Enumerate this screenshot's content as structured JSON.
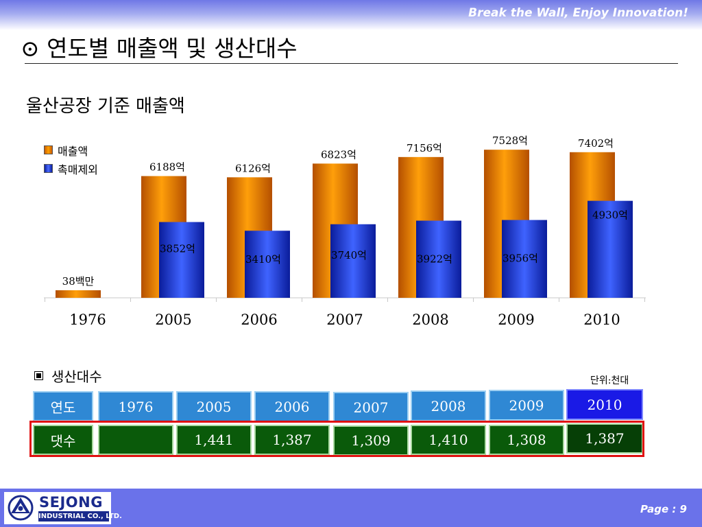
{
  "header": {
    "slogan": "Break the Wall, Enjoy Innovation!",
    "title": "⊙ 연도별 매출액 및 생산대수"
  },
  "section_title": "울산공장 기준 매출액",
  "colors": {
    "revenue_bar": "#f08a00",
    "excluding_bar": "#2348e6",
    "year_header": "#2f88d4",
    "year_header_last": "#1a1ae6",
    "quantity_cell": "#0a5a0a",
    "highlight_frame": "#e01010",
    "footer_band": "#6a72ea"
  },
  "chart_data": {
    "type": "bar",
    "categories": [
      "1976",
      "2005",
      "2006",
      "2007",
      "2008",
      "2009",
      "2010"
    ],
    "series": [
      {
        "name": "매출액",
        "values": [
          0.38,
          6188,
          6126,
          6823,
          7156,
          7528,
          7402
        ],
        "labels": [
          "38백만",
          "6188억",
          "6126억",
          "6823억",
          "7156억",
          "7528억",
          "7402억"
        ]
      },
      {
        "name": "촉매제외",
        "values": [
          null,
          3852,
          3410,
          3740,
          3922,
          3956,
          4930
        ],
        "labels": [
          null,
          "3852억",
          "3410억",
          "3740억",
          "3922억",
          "3956억",
          "4930억"
        ]
      }
    ],
    "title": "울산공장 기준 매출액",
    "xlabel": "",
    "ylabel": "",
    "legend": "top-left",
    "grid": false
  },
  "production": {
    "title": "생산대수",
    "unit": "단위:천대",
    "row_labels": {
      "year": "연도",
      "quantity": "댓수"
    },
    "years": [
      "1976",
      "2005",
      "2006",
      "2007",
      "2008",
      "2009",
      "2010"
    ],
    "quantities": [
      "",
      "1,441",
      "1,387",
      "1,309",
      "1,410",
      "1,308",
      "1,387"
    ]
  },
  "footer": {
    "logo_name": "SEJONG",
    "logo_sub": "INDUSTRIAL CO., LTD.",
    "page": "Page : 9"
  }
}
